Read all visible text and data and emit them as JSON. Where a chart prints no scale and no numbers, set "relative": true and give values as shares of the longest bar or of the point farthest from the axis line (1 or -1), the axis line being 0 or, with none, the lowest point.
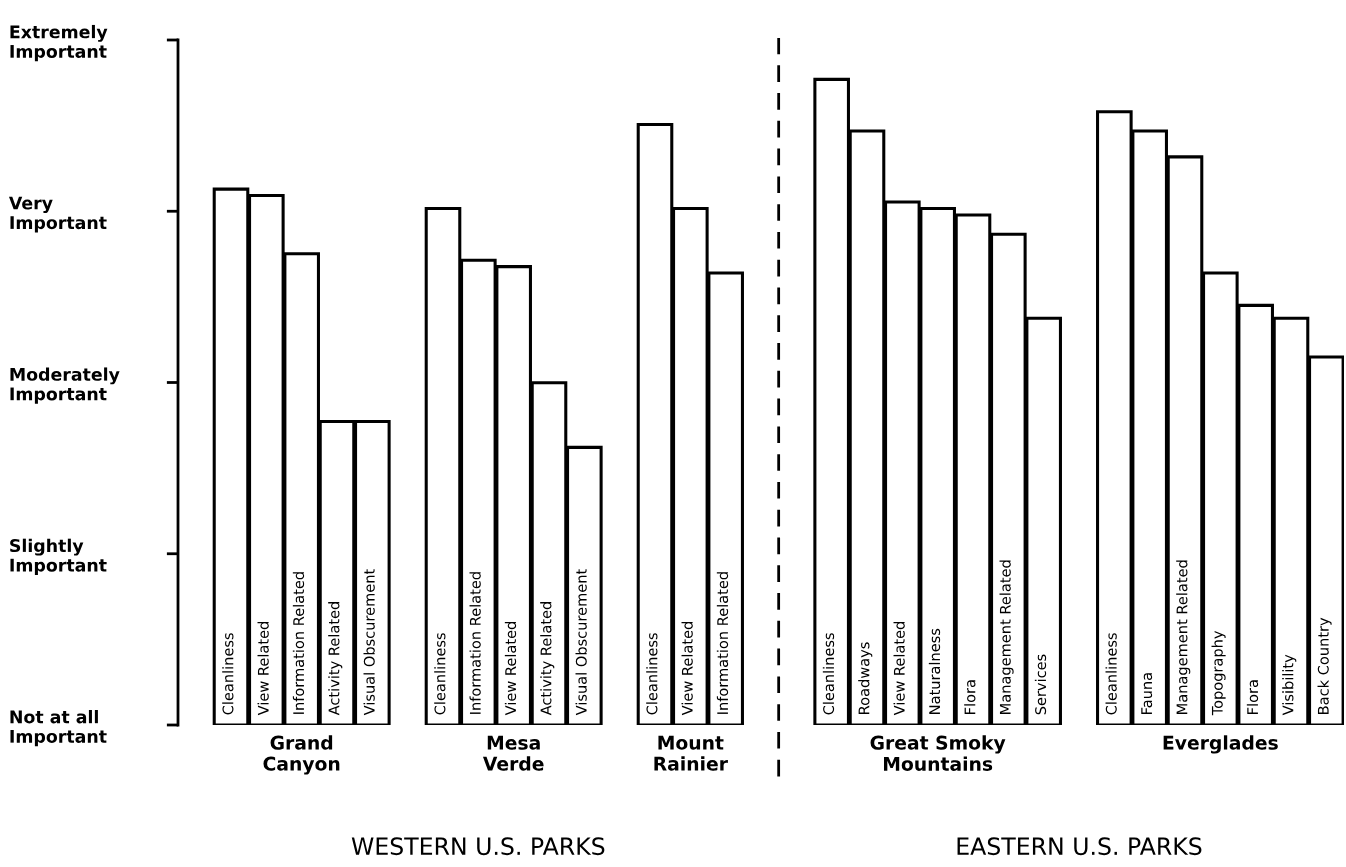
{
  "chart_data": {
    "type": "bar",
    "relative": true,
    "categories": [
      "Cleanliness",
      "View Related",
      "Information Related",
      "Activity Related",
      "Visual Obscurement",
      null,
      "Cleanliness",
      "Information Related",
      "View Related",
      "Activity Related",
      "Visual Obscurement",
      null,
      "Cleanliness",
      "View Related",
      "Information Related",
      null,
      null,
      "Cleanliness",
      "Roadways",
      "View Related",
      "Naturalness",
      "Flora",
      "Management Related",
      "Services",
      null,
      "Cleanliness",
      "Fauna",
      "Management Related",
      "Topography",
      "Flora",
      "Visibility",
      "Back Country"
    ],
    "series": [
      {
        "name": "Grand\nCanyon",
        "color": "#ffffff",
        "values": [
          0.83,
          0.82,
          0.73,
          0.47,
          0.47,
          null,
          null,
          null,
          null,
          null,
          null,
          null,
          null,
          null,
          null,
          null,
          null,
          null,
          null,
          null,
          null,
          null,
          null,
          null,
          null,
          null,
          null,
          null,
          null,
          null,
          null,
          null
        ]
      },
      {
        "name": "Mesa\nVerde",
        "color": "#ffffff",
        "values": [
          null,
          null,
          null,
          null,
          null,
          null,
          0.8,
          0.72,
          0.71,
          0.53,
          0.43,
          null,
          null,
          null,
          null,
          null,
          null,
          null,
          null,
          null,
          null,
          null,
          null,
          null,
          null,
          null,
          null,
          null,
          null,
          null,
          null,
          null
        ]
      },
      {
        "name": "Mount\nRainier",
        "color": "#ffffff",
        "values": [
          null,
          null,
          null,
          null,
          null,
          null,
          null,
          null,
          null,
          null,
          null,
          null,
          0.93,
          0.8,
          0.7,
          null,
          null,
          null,
          null,
          null,
          null,
          null,
          null,
          null,
          null,
          null,
          null,
          null,
          null,
          null,
          null,
          null
        ]
      },
      {
        "name": "Great Smoky\nMountains",
        "color": "#ffffff",
        "values": [
          null,
          null,
          null,
          null,
          null,
          null,
          null,
          null,
          null,
          null,
          null,
          null,
          null,
          null,
          null,
          null,
          null,
          1,
          0.92,
          0.81,
          0.8,
          0.79,
          0.76,
          0.63,
          null,
          null,
          null,
          null,
          null,
          null,
          null,
          null
        ]
      },
      {
        "name": "Everglades",
        "color": "#ffffff",
        "values": [
          null,
          null,
          null,
          null,
          null,
          null,
          null,
          null,
          null,
          null,
          null,
          null,
          null,
          null,
          null,
          null,
          null,
          null,
          null,
          null,
          null,
          null,
          null,
          null,
          null,
          0.95,
          0.92,
          0.88,
          0.7,
          0.65,
          0.63,
          0.57
        ]
      }
    ],
    "annotations": [
      "Not at all\nImportant",
      "Slightly\nImportant",
      "Moderately\nImportant",
      "Very\nImportant",
      "Extremely\nImportant",
      "WESTERN U.S. PARKS",
      "EASTERN U.S. PARKS"
    ]
  }
}
